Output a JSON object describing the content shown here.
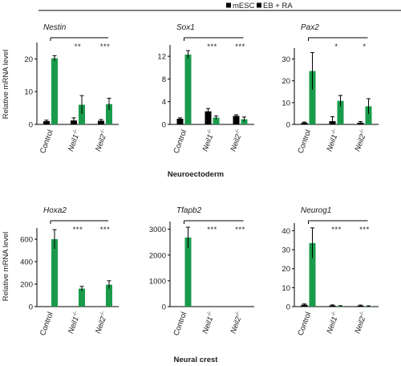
{
  "legend": {
    "items": [
      {
        "label": "mESC",
        "color": "#000000"
      },
      {
        "label": "EB + RA",
        "color": "#1a9b4b"
      }
    ]
  },
  "colors": {
    "mesc": "#000000",
    "ebra": "#1a9b4b"
  },
  "y_axis_label": "Relative mRNA level",
  "section_labels": {
    "top": "Neuroectoderm",
    "bottom": "Neural crest"
  },
  "chart_data": [
    {
      "type": "bar",
      "title": "Nestin",
      "categories": [
        "Control",
        "Neil1-/-",
        "Neil2-/-"
      ],
      "series": [
        {
          "name": "mESC",
          "values": [
            1.0,
            1.2,
            1.1
          ],
          "errors": [
            0.3,
            0.8,
            0.4
          ]
        },
        {
          "name": "EB + RA",
          "values": [
            20.2,
            6.0,
            6.2
          ],
          "errors": [
            0.8,
            2.8,
            1.8
          ]
        }
      ],
      "ylim": [
        0,
        25
      ],
      "yticks": [
        0,
        10,
        20
      ],
      "significance": [
        "",
        "**",
        "***"
      ]
    },
    {
      "type": "bar",
      "title": "Sox1",
      "categories": [
        "Control",
        "Neil1-/-",
        "Neil2-/-"
      ],
      "series": [
        {
          "name": "mESC",
          "values": [
            1.0,
            2.3,
            1.5
          ],
          "errors": [
            0.15,
            0.5,
            0.2
          ]
        },
        {
          "name": "EB + RA",
          "values": [
            12.3,
            1.2,
            0.9
          ],
          "errors": [
            0.7,
            0.3,
            0.4
          ]
        }
      ],
      "ylim": [
        0,
        14
      ],
      "yticks": [
        0,
        4,
        8,
        12
      ],
      "significance": [
        "",
        "***",
        "***"
      ]
    },
    {
      "type": "bar",
      "title": "Pax2",
      "categories": [
        "Control",
        "Neil1-/-",
        "Neil2-/-"
      ],
      "series": [
        {
          "name": "mESC",
          "values": [
            0.8,
            1.5,
            0.8
          ],
          "errors": [
            0.3,
            2.0,
            0.5
          ]
        },
        {
          "name": "EB + RA",
          "values": [
            24.5,
            10.8,
            8.3
          ],
          "errors": [
            8.5,
            2.5,
            3.5
          ]
        }
      ],
      "ylim": [
        0,
        35
      ],
      "yticks": [
        0,
        10,
        20,
        30
      ],
      "significance": [
        "",
        "*",
        "*"
      ]
    },
    {
      "type": "bar",
      "title": "Hoxa2",
      "categories": [
        "Control",
        "Neil1-/-",
        "Neil2-/-"
      ],
      "series": [
        {
          "name": "mESC",
          "values": [
            0,
            0,
            0
          ],
          "errors": [
            0,
            0,
            0
          ]
        },
        {
          "name": "EB + RA",
          "values": [
            600,
            160,
            195
          ],
          "errors": [
            85,
            20,
            35
          ]
        }
      ],
      "ylim": [
        0,
        700
      ],
      "yticks": [
        0,
        200,
        400,
        600
      ],
      "significance": [
        "",
        "***",
        "***"
      ]
    },
    {
      "type": "bar",
      "title": "Tfapb2",
      "categories": [
        "Control",
        "Neil1-/-",
        "Neil2-/-"
      ],
      "series": [
        {
          "name": "mESC",
          "values": [
            0,
            0,
            0
          ],
          "errors": [
            0,
            0,
            0
          ]
        },
        {
          "name": "EB + RA",
          "values": [
            2680,
            3,
            3
          ],
          "errors": [
            400,
            0,
            0
          ]
        }
      ],
      "ylim": [
        0,
        3300
      ],
      "yticks": [
        0,
        1000,
        2000,
        3000
      ],
      "significance": [
        "",
        "***",
        "***"
      ]
    },
    {
      "type": "bar",
      "title": "Neurog1",
      "categories": [
        "Control",
        "Neil1-/-",
        "Neil2-/-"
      ],
      "series": [
        {
          "name": "mESC",
          "values": [
            1.0,
            0.6,
            0.5
          ],
          "errors": [
            0.4,
            0.3,
            0.3
          ]
        },
        {
          "name": "EB + RA",
          "values": [
            33.5,
            0.3,
            0.2
          ],
          "errors": [
            8.0,
            0.2,
            0.2
          ]
        }
      ],
      "ylim": [
        0,
        44
      ],
      "yticks": [
        0,
        10,
        20,
        30,
        40
      ],
      "significance": [
        "",
        "***",
        "***"
      ]
    }
  ]
}
